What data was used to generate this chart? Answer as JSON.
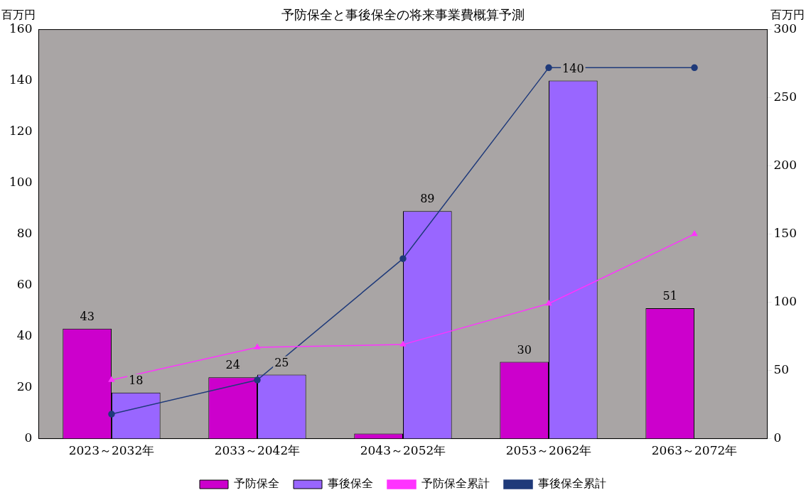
{
  "chart_data": {
    "type": "bar",
    "title": "予防保全と事後保全の将来事業費概算予測",
    "ylabel": "百万円",
    "y2label": "百万円",
    "categories": [
      "2023～2032年",
      "2033～2042年",
      "2043～2052年",
      "2053～2062年",
      "2063～2072年"
    ],
    "series": [
      {
        "name": "予防保全",
        "color": "#cc00cc",
        "values": [
          43,
          24,
          2,
          30,
          51
        ],
        "value_labels": [
          "43",
          "24",
          null,
          "30",
          "51"
        ]
      },
      {
        "name": "事後保全",
        "color": "#9966ff",
        "values": [
          18,
          25,
          89,
          140,
          null
        ],
        "value_labels": [
          "18",
          "25",
          "89",
          "140",
          null
        ]
      },
      {
        "name": "予防保全累計",
        "type": "line",
        "axis": "y2",
        "marker": "triangle",
        "color": "#ff33ff",
        "values": [
          43,
          67,
          69,
          99,
          150
        ]
      },
      {
        "name": "事後保全累計",
        "type": "line",
        "axis": "y2",
        "marker": "circle",
        "color": "#1f3a7a",
        "values": [
          18,
          43,
          132,
          272,
          272
        ]
      }
    ],
    "ylim": [
      0,
      160
    ],
    "yticks": [
      0,
      20,
      40,
      60,
      80,
      100,
      120,
      140,
      160
    ],
    "y2lim": [
      0,
      300
    ],
    "y2ticks": [
      0,
      50,
      100,
      150,
      200,
      250,
      300
    ],
    "grid": false,
    "legend": "bottom"
  }
}
